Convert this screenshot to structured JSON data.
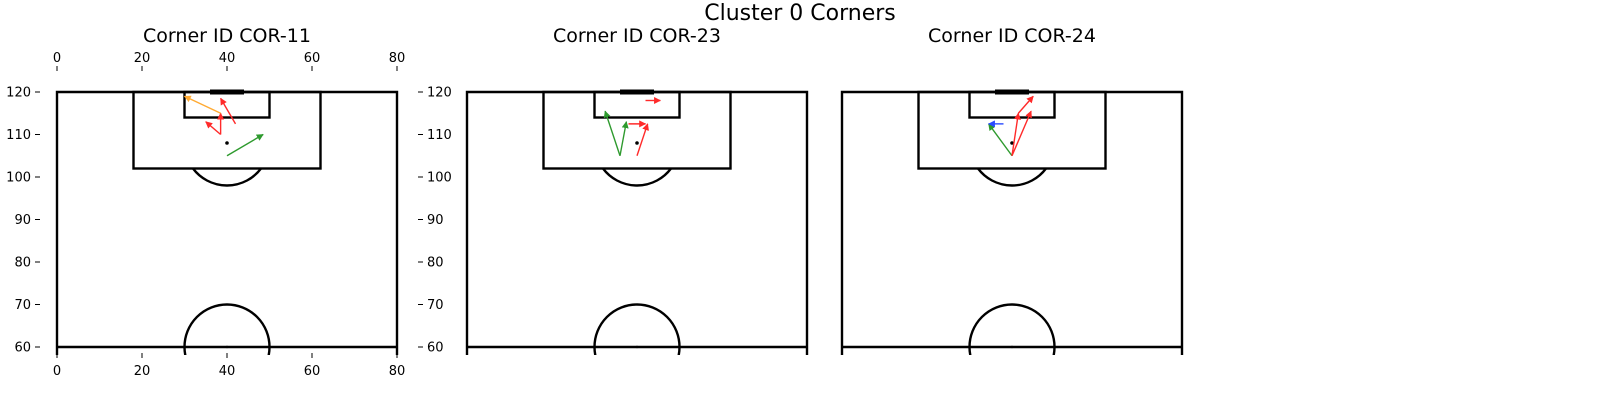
{
  "chart_data": {
    "type": "pitch-arrows",
    "title": "Cluster 0 Corners",
    "x_ticks": [
      0,
      20,
      40,
      60,
      80
    ],
    "y_ticks": [
      120,
      110,
      100,
      90,
      80,
      70,
      60
    ],
    "xlim": [
      0,
      80
    ],
    "ylim": [
      60,
      120
    ],
    "colors": {
      "red": "#ff2a2a",
      "green": "#2e9a2e",
      "orange": "#ffaa33",
      "blue": "#2a4bff",
      "ink": "#000000"
    },
    "panels": [
      {
        "title": "Corner ID COR-11",
        "ball": [
          40,
          108
        ],
        "arrows": [
          {
            "from": [
              40,
              105
            ],
            "to": [
              48.5,
              110
            ],
            "color": "green"
          },
          {
            "from": [
              38.5,
              110
            ],
            "to": [
              35,
              113
            ],
            "color": "red"
          },
          {
            "from": [
              38.5,
              110
            ],
            "to": [
              38.5,
              115
            ],
            "color": "red"
          },
          {
            "from": [
              38.5,
              115
            ],
            "to": [
              30,
              119
            ],
            "color": "orange"
          },
          {
            "from": [
              42,
              112.5
            ],
            "to": [
              38.5,
              118.5
            ],
            "color": "red"
          }
        ]
      },
      {
        "title": "Corner ID COR-23",
        "ball": [
          40,
          108
        ],
        "arrows": [
          {
            "from": [
              36,
              105
            ],
            "to": [
              37.5,
              113
            ],
            "color": "green"
          },
          {
            "from": [
              36,
              105
            ],
            "to": [
              32.5,
              115.5
            ],
            "color": "green"
          },
          {
            "from": [
              38,
              112.5
            ],
            "to": [
              42,
              112.5
            ],
            "color": "red"
          },
          {
            "from": [
              40,
              105
            ],
            "to": [
              42.5,
              112.5
            ],
            "color": "red"
          },
          {
            "from": [
              42,
              118
            ],
            "to": [
              45.5,
              118
            ],
            "color": "red"
          }
        ]
      },
      {
        "title": "Corner ID COR-24",
        "ball": [
          40,
          108
        ],
        "arrows": [
          {
            "from": [
              40,
              105
            ],
            "to": [
              34.5,
              112.5
            ],
            "color": "green"
          },
          {
            "from": [
              38,
              112.5
            ],
            "to": [
              34.5,
              112.5
            ],
            "color": "blue"
          },
          {
            "from": [
              40,
              105
            ],
            "to": [
              41.5,
              115
            ],
            "color": "red"
          },
          {
            "from": [
              40,
              105
            ],
            "to": [
              44.5,
              115.5
            ],
            "color": "red"
          },
          {
            "from": [
              41.5,
              115
            ],
            "to": [
              45,
              119
            ],
            "color": "red"
          }
        ]
      }
    ]
  }
}
